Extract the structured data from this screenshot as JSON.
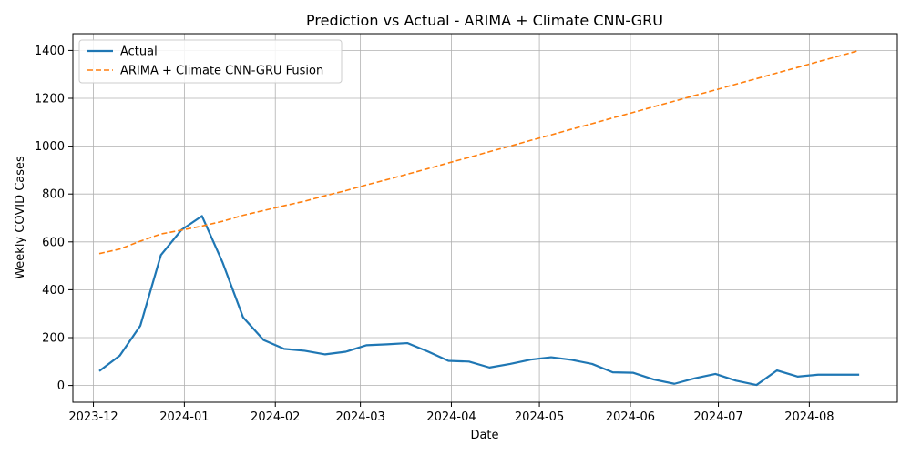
{
  "chart_data": {
    "type": "line",
    "title": "Prediction vs Actual - ARIMA + Climate CNN-GRU",
    "xlabel": "Date",
    "ylabel": "Weekly COVID Cases",
    "xlim": [
      "2023-11-24",
      "2024-08-31"
    ],
    "ylim": [
      -70,
      1470
    ],
    "grid": true,
    "legend_position": "top-left",
    "x_ticks": [
      "2023-12-01",
      "2024-01-01",
      "2024-02-01",
      "2024-03-01",
      "2024-04-01",
      "2024-05-01",
      "2024-06-01",
      "2024-07-01",
      "2024-08-01"
    ],
    "x_tick_labels": [
      "2023-12",
      "2024-01",
      "2024-02",
      "2024-03",
      "2024-04",
      "2024-05",
      "2024-06",
      "2024-07",
      "2024-08"
    ],
    "y_ticks": [
      0,
      200,
      400,
      600,
      800,
      1000,
      1200,
      1400
    ],
    "x": [
      "2023-12-03",
      "2023-12-10",
      "2023-12-17",
      "2023-12-24",
      "2023-12-31",
      "2024-01-07",
      "2024-01-14",
      "2024-01-21",
      "2024-01-28",
      "2024-02-04",
      "2024-02-11",
      "2024-02-18",
      "2024-02-25",
      "2024-03-03",
      "2024-03-10",
      "2024-03-17",
      "2024-03-24",
      "2024-03-31",
      "2024-04-07",
      "2024-04-14",
      "2024-04-21",
      "2024-04-28",
      "2024-05-05",
      "2024-05-12",
      "2024-05-19",
      "2024-05-26",
      "2024-06-02",
      "2024-06-09",
      "2024-06-16",
      "2024-06-23",
      "2024-06-30",
      "2024-07-07",
      "2024-07-14",
      "2024-07-21",
      "2024-07-28",
      "2024-08-04",
      "2024-08-11",
      "2024-08-18"
    ],
    "series": [
      {
        "name": "Actual",
        "color": "#1f77b4",
        "style": "solid",
        "values": [
          60,
          125,
          250,
          545,
          650,
          708,
          515,
          285,
          190,
          153,
          145,
          130,
          141,
          168,
          172,
          177,
          142,
          103,
          100,
          75,
          90,
          108,
          118,
          107,
          90,
          55,
          53,
          25,
          7,
          30,
          48,
          20,
          2,
          63,
          37,
          45,
          45,
          45
        ]
      },
      {
        "name": "ARIMA + Climate CNN-GRU Fusion",
        "color": "#ff7f0e",
        "style": "dashed",
        "values": [
          551,
          570,
          603,
          633,
          649,
          666,
          686,
          711,
          731,
          751,
          770,
          793,
          814,
          838,
          860,
          883,
          906,
          930,
          953,
          977,
          1000,
          1024,
          1047,
          1071,
          1094,
          1118,
          1141,
          1165,
          1188,
          1212,
          1235,
          1259,
          1282,
          1306,
          1329,
          1353,
          1376,
          1400
        ]
      }
    ]
  }
}
